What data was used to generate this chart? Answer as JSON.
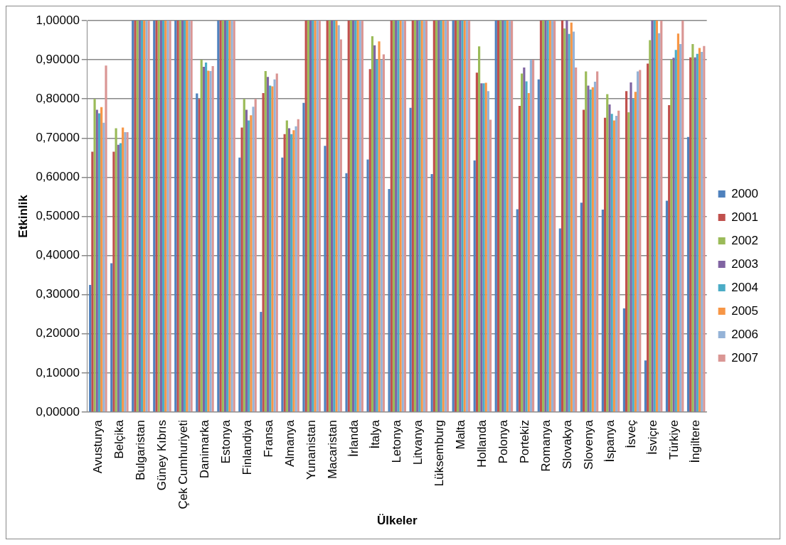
{
  "chart_data": {
    "type": "bar",
    "xlabel": "Ülkeler",
    "ylabel": "Etkinlik",
    "categories": [
      "Avusturya",
      "Belçika",
      "Bulgaristan",
      "Güney Kıbrıs",
      "Çek Cumhuriyeti",
      "Danimarka",
      "Estonya",
      "Finlandiya",
      "Fransa",
      "Almanya",
      "Yunanistan",
      "Macaristan",
      "İrlanda",
      "İtalya",
      "Letonya",
      "Litvanya",
      "Lüksemburg",
      "Malta",
      "Hollanda",
      "Polonya",
      "Portekiz",
      "Romanya",
      "Slovakya",
      "Slovenya",
      "İspanya",
      "İsveç",
      "İsviçre",
      "Türkiye",
      "İngiltere"
    ],
    "ylim": [
      0,
      1
    ],
    "yticks": [
      {
        "value": 0,
        "label": "0,00000"
      },
      {
        "value": 0.1,
        "label": "0,10000"
      },
      {
        "value": 0.2,
        "label": "0,20000"
      },
      {
        "value": 0.3,
        "label": "0,30000"
      },
      {
        "value": 0.4,
        "label": "0,40000"
      },
      {
        "value": 0.5,
        "label": "0,50000"
      },
      {
        "value": 0.6,
        "label": "0,60000"
      },
      {
        "value": 0.7,
        "label": "0,70000"
      },
      {
        "value": 0.8,
        "label": "0,80000"
      },
      {
        "value": 0.9,
        "label": "0,90000"
      },
      {
        "value": 1,
        "label": "1,00000"
      }
    ],
    "grid": "y",
    "legend": "right",
    "series": [
      {
        "name": "2000",
        "color": "#4f81bd",
        "values": [
          0.325,
          0.38,
          1,
          1,
          1,
          0.814,
          1,
          0.65,
          0.256,
          0.65,
          0.79,
          0.68,
          0.61,
          0.645,
          0.57,
          0.777,
          0.608,
          1,
          0.643,
          1,
          0.518,
          0.85,
          0.469,
          0.535,
          0.517,
          0.265,
          0.132,
          0.54,
          0.703
        ]
      },
      {
        "name": "2001",
        "color": "#c0504d",
        "values": [
          0.665,
          0.665,
          1,
          1,
          1,
          0.8,
          1,
          0.727,
          0.815,
          0.71,
          1,
          1,
          1,
          0.876,
          1,
          1,
          1,
          1,
          0.867,
          1,
          0.782,
          1,
          1,
          0.772,
          0.752,
          0.82,
          0.89,
          0.784,
          0.906
        ]
      },
      {
        "name": "2002",
        "color": "#9bbb59",
        "values": [
          0.8,
          0.725,
          1,
          1,
          1,
          0.9,
          1,
          0.8,
          0.871,
          0.745,
          1,
          1,
          1,
          0.96,
          1,
          1,
          1,
          1,
          0.934,
          1,
          0.865,
          1,
          0.98,
          0.87,
          0.812,
          0.766,
          0.95,
          0.9,
          0.94
        ]
      },
      {
        "name": "2003",
        "color": "#8064a2",
        "values": [
          0.772,
          0.683,
          1,
          1,
          1,
          0.882,
          1,
          0.772,
          0.856,
          0.725,
          1,
          1,
          1,
          0.937,
          1,
          1,
          1,
          1,
          0.84,
          1,
          0.88,
          1,
          1,
          0.834,
          0.786,
          0.842,
          1,
          0.905,
          0.906
        ]
      },
      {
        "name": "2004",
        "color": "#4bacc6",
        "values": [
          0.763,
          0.687,
          1,
          1,
          1,
          0.893,
          1,
          0.745,
          0.834,
          0.71,
          1,
          1,
          1,
          0.9,
          1,
          1,
          1,
          1,
          0.84,
          1,
          0.845,
          1,
          0.966,
          0.824,
          0.762,
          0.8,
          1,
          0.925,
          0.915
        ]
      },
      {
        "name": "2005",
        "color": "#f79646",
        "values": [
          0.779,
          0.727,
          1,
          1,
          1,
          0.872,
          1,
          0.758,
          0.832,
          0.72,
          1,
          1,
          1,
          0.947,
          1,
          1,
          1,
          1,
          0.841,
          1,
          0.815,
          1,
          0.995,
          0.83,
          0.745,
          0.818,
          1,
          0.967,
          0.93
        ]
      },
      {
        "name": "2006",
        "color": "#95b3d7",
        "values": [
          0.739,
          0.715,
          1,
          1,
          1,
          0.871,
          1,
          0.78,
          0.85,
          0.73,
          1,
          0.988,
          1,
          0.9,
          1,
          1,
          1,
          1,
          0.82,
          1,
          0.9,
          1,
          0.972,
          0.844,
          0.757,
          0.87,
          0.968,
          0.94,
          0.92
        ]
      },
      {
        "name": "2007",
        "color": "#da9694",
        "values": [
          0.885,
          0.715,
          1,
          1,
          1,
          0.884,
          1,
          0.8,
          0.865,
          0.748,
          1,
          0.952,
          1,
          0.914,
          1,
          1,
          1,
          1,
          0.747,
          1,
          0.9,
          1,
          0.88,
          0.87,
          0.77,
          0.874,
          1,
          1,
          0.935
        ]
      }
    ]
  }
}
